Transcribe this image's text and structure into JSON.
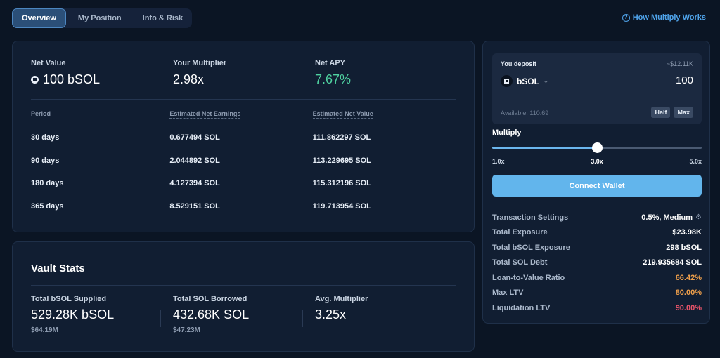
{
  "tabs": [
    {
      "label": "Overview",
      "active": true
    },
    {
      "label": "My Position",
      "active": false
    },
    {
      "label": "Info & Risk",
      "active": false
    }
  ],
  "help_link": "How Multiply Works",
  "overview": {
    "net_value_label": "Net Value",
    "net_value": "100 bSOL",
    "multiplier_label": "Your Multiplier",
    "multiplier": "2.98x",
    "apy_label": "Net APY",
    "apy": "7.67%",
    "apy_color": "#4fd1a0",
    "table": {
      "headers": [
        "Period",
        "Estimated Net Earnings",
        "Estimated Net Value"
      ],
      "rows": [
        [
          "30 days",
          "0.677494 SOL",
          "111.862297 SOL"
        ],
        [
          "90 days",
          "2.044892 SOL",
          "113.229695 SOL"
        ],
        [
          "180 days",
          "4.127394 SOL",
          "115.312196 SOL"
        ],
        [
          "365 days",
          "8.529151 SOL",
          "119.713954 SOL"
        ]
      ]
    }
  },
  "vault": {
    "title": "Vault Stats",
    "stats": [
      {
        "label": "Total bSOL Supplied",
        "value": "529.28K bSOL",
        "sub": "$64.19M"
      },
      {
        "label": "Total SOL Borrowed",
        "value": "432.68K SOL",
        "sub": "$47.23M"
      },
      {
        "label": "Avg. Multiplier",
        "value": "3.25x",
        "sub": ""
      }
    ]
  },
  "deposit": {
    "label": "You deposit",
    "usd_value": "~$12.11K",
    "token": "bSOL",
    "amount": "100",
    "available": "Available: 110.69",
    "half_label": "Half",
    "max_label": "Max"
  },
  "multiply": {
    "title": "Multiply",
    "min_label": "1.0x",
    "current_label": "3.0x",
    "max_label": "5.0x",
    "min": 1.0,
    "max": 5.0,
    "value": 3.0
  },
  "connect_label": "Connect Wallet",
  "details": [
    {
      "key": "Transaction Settings",
      "value": "0.5%, Medium",
      "color": "#ffffff",
      "gear": true
    },
    {
      "key": "Total Exposure",
      "value": "$23.98K",
      "color": "#ffffff"
    },
    {
      "key": "Total bSOL Exposure",
      "value": "298 bSOL",
      "color": "#ffffff"
    },
    {
      "key": "Total SOL Debt",
      "value": "219.935684 SOL",
      "color": "#ffffff"
    },
    {
      "key": "Loan-to-Value Ratio",
      "value": "66.42%",
      "color": "#f0a04b"
    },
    {
      "key": "Max LTV",
      "value": "80.00%",
      "color": "#f0a04b"
    },
    {
      "key": "Liquidation LTV",
      "value": "90.00%",
      "color": "#e8546a"
    }
  ]
}
